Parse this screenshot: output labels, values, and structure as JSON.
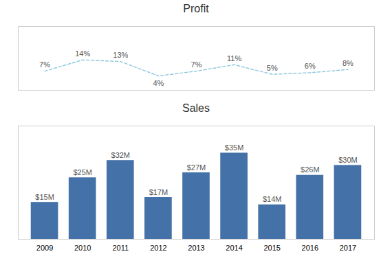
{
  "chart_data": [
    {
      "type": "line",
      "title": "Profit",
      "x": [
        2009,
        2010,
        2011,
        2012,
        2013,
        2014,
        2015,
        2016,
        2017
      ],
      "values": [
        7,
        14,
        13,
        4,
        7,
        11,
        5,
        6,
        8
      ],
      "value_labels": [
        "7%",
        "14%",
        "13%",
        "4%",
        "7%",
        "11%",
        "5%",
        "6%",
        "8%"
      ],
      "data_labels": true,
      "color": "#92CADF",
      "line_style": "dashed",
      "xlim": [
        2008.3,
        2017.7
      ],
      "ylim": [
        -5,
        35
      ],
      "tick_labels": false
    },
    {
      "type": "bar",
      "title": "Sales",
      "x": [
        2009,
        2010,
        2011,
        2012,
        2013,
        2014,
        2015,
        2016,
        2017
      ],
      "values": [
        15,
        25,
        32,
        17,
        27,
        35,
        14,
        26,
        30
      ],
      "value_labels": [
        "$15M",
        "$25M",
        "$32M",
        "$17M",
        "$27M",
        "$35M",
        "$14M",
        "$26M",
        "$30M"
      ],
      "data_labels": true,
      "color": "#4472A8",
      "xlim": [
        2008.3,
        2017.7
      ],
      "xticks": [
        2009,
        2010,
        2011,
        2012,
        2013,
        2014,
        2015,
        2016,
        2017
      ],
      "ylim": [
        0,
        46
      ],
      "tick_labels": "x"
    }
  ]
}
